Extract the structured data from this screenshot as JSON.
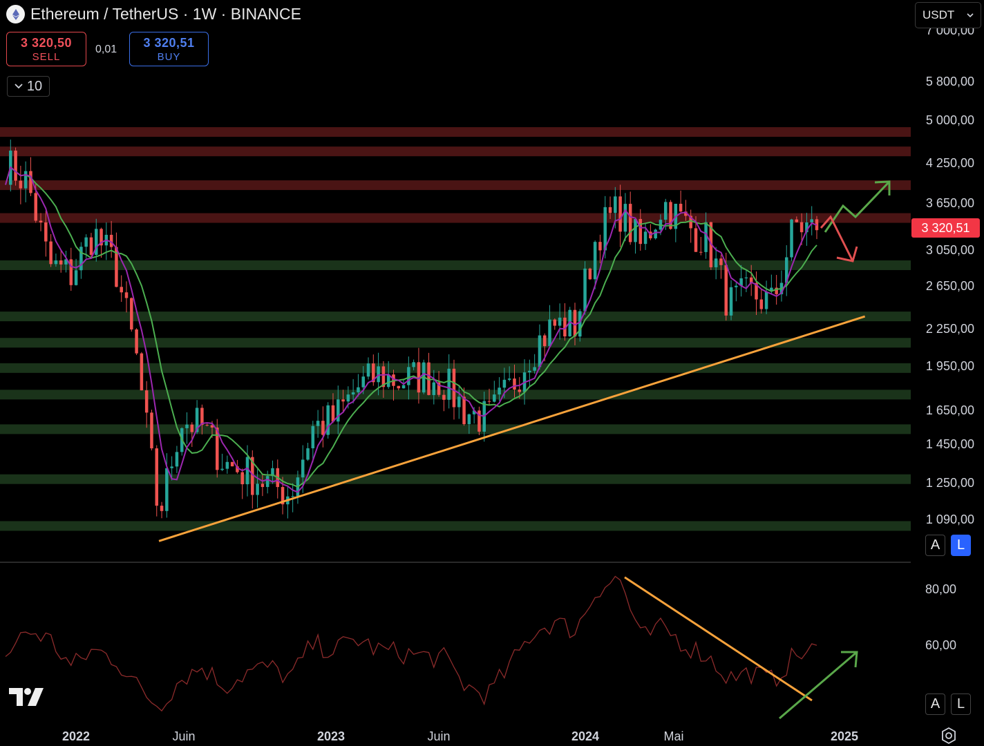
{
  "header": {
    "title": "Ethereum / TetherUS · 1W · BINANCE",
    "sell_price": "3 320,50",
    "sell_label": "SELL",
    "spread": "0,01",
    "buy_price": "3 320,51",
    "buy_label": "BUY",
    "indicator_count": "10",
    "currency": "USDT"
  },
  "price_scale": {
    "ticks": [
      "7 000,00",
      "5 800,00",
      "5 000,00",
      "4 250,00",
      "3 650,00",
      "3 050,00",
      "2 650,00",
      "2 250,00",
      "1 950,00",
      "1 650,00",
      "1 450,00",
      "1 250,00",
      "1 090,00"
    ],
    "current_price": "3 320,51",
    "auto_label": "A",
    "log_label": "L"
  },
  "rsi_scale": {
    "ticks": [
      "80,00",
      "60,00"
    ],
    "auto_label": "A",
    "log_label": "L"
  },
  "time_axis": [
    "2022",
    "Juin",
    "2023",
    "Juin",
    "2024",
    "Mai",
    "2025"
  ],
  "colors": {
    "up": "#26a69a",
    "down": "#ef5350",
    "ma_fast": "#9c27b0",
    "ma_slow": "#4caf50",
    "trendline": "#f7a23b",
    "resistance_zone": "#4a1414",
    "support_zone": "#1a331a",
    "rsi_line": "#8c2b2b",
    "current_price": "#f23645"
  },
  "chart_data": [
    {
      "type": "candlestick",
      "symbol": "ETHUSDT",
      "interval": "1W",
      "scale": "log",
      "ylim": [
        950,
        7300
      ],
      "x": [
        "2021-11",
        "2021-12",
        "2022-01",
        "2022-02",
        "2022-03",
        "2022-04",
        "2022-05",
        "2022-06",
        "2022-07",
        "2022-08",
        "2022-09",
        "2022-10",
        "2022-11",
        "2022-12",
        "2023-01",
        "2023-02",
        "2023-03",
        "2023-04",
        "2023-05",
        "2023-06",
        "2023-07",
        "2023-08",
        "2023-09",
        "2023-10",
        "2023-11",
        "2023-12",
        "2024-01",
        "2024-02",
        "2024-03",
        "2024-04",
        "2024-05",
        "2024-06",
        "2024-07",
        "2024-08",
        "2024-09",
        "2024-10",
        "2024-11",
        "2024-12"
      ],
      "close": [
        4300,
        4000,
        2900,
        2800,
        3300,
        2900,
        2000,
        1100,
        1600,
        1550,
        1350,
        1300,
        1250,
        1200,
        1550,
        1600,
        1800,
        1900,
        1850,
        1900,
        1850,
        1650,
        1600,
        1800,
        2100,
        2300,
        2300,
        3300,
        3600,
        3100,
        3700,
        3400,
        3200,
        2500,
        2600,
        2500,
        3400,
        3320.51
      ],
      "resistance_zones": [
        4850,
        4500,
        3950,
        3480
      ],
      "support_zones": [
        2900,
        2380,
        2150,
        1950,
        1760,
        1540,
        1270,
        1060
      ],
      "trendline": {
        "from": [
          "2022-06",
          1000
        ],
        "to": [
          "2024-12",
          2380
        ]
      }
    },
    {
      "type": "line",
      "indicator": "RSI",
      "ylim": [
        40,
        85
      ],
      "ticks": [
        80,
        60
      ],
      "values": [
        56,
        65,
        62,
        52,
        58,
        55,
        45,
        38,
        48,
        52,
        45,
        50,
        52,
        48,
        60,
        58,
        62,
        58,
        57,
        56,
        55,
        45,
        42,
        52,
        64,
        68,
        65,
        80,
        84,
        62,
        66,
        60,
        56,
        48,
        50,
        47,
        56,
        58
      ],
      "trendline": {
        "from": [
          80,
          84
        ],
        "to": [
          97,
          40
        ]
      }
    }
  ]
}
